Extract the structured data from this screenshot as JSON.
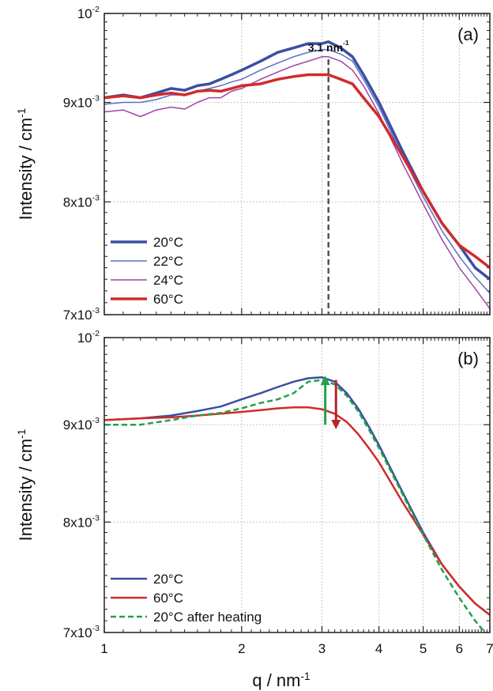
{
  "chart_data": [
    {
      "type": "line",
      "panel_label": "(a)",
      "ylabel": "Intensity / cm",
      "ylabel_superscript": "-1",
      "x_scale": "log",
      "y_scale": "log",
      "xlim": [
        1,
        7
      ],
      "ylim": [
        0.007,
        0.01
      ],
      "grid": true,
      "legend_position": "bottom-left",
      "y_ticks": [
        {
          "value": 0.009,
          "label": "9x10",
          "exp": "-3"
        },
        {
          "value": 0.008,
          "label": "8x10",
          "exp": "-3"
        },
        {
          "value": 0.007,
          "label": "7x10",
          "exp": "-3"
        },
        {
          "value": 0.01,
          "label": "10",
          "exp": "-2"
        }
      ],
      "annotation": {
        "text": "3.1 nm",
        "superscript": "-1",
        "x": 3.1
      },
      "series": [
        {
          "name": "20°C",
          "color": "#3a4fa3",
          "width": 3.5,
          "dash": "",
          "x": [
            1,
            1.1,
            1.2,
            1.3,
            1.4,
            1.5,
            1.6,
            1.7,
            1.8,
            1.9,
            2,
            2.2,
            2.4,
            2.6,
            2.8,
            3,
            3.1,
            3.3,
            3.5,
            3.7,
            4,
            4.5,
            5,
            5.5,
            6,
            6.5,
            7
          ],
          "y": [
            0.00905,
            0.00908,
            0.00905,
            0.0091,
            0.00915,
            0.00913,
            0.00918,
            0.0092,
            0.00925,
            0.0093,
            0.00935,
            0.00945,
            0.00955,
            0.0096,
            0.00965,
            0.00965,
            0.00967,
            0.0096,
            0.0095,
            0.0093,
            0.009,
            0.0085,
            0.0081,
            0.0078,
            0.0076,
            0.0074,
            0.0073
          ]
        },
        {
          "name": "22°C",
          "color": "#5c6fc4",
          "width": 1.5,
          "dash": "",
          "x": [
            1,
            1.1,
            1.2,
            1.3,
            1.4,
            1.5,
            1.6,
            1.7,
            1.8,
            1.9,
            2,
            2.2,
            2.4,
            2.6,
            2.8,
            3,
            3.1,
            3.3,
            3.5,
            3.7,
            4,
            4.5,
            5,
            5.5,
            6,
            6.5,
            7
          ],
          "y": [
            0.00898,
            0.009,
            0.009,
            0.00903,
            0.00908,
            0.00908,
            0.00912,
            0.00915,
            0.00918,
            0.00922,
            0.00925,
            0.00935,
            0.00943,
            0.0095,
            0.00955,
            0.00958,
            0.00958,
            0.00953,
            0.00945,
            0.00925,
            0.00895,
            0.00845,
            0.00805,
            0.00773,
            0.0075,
            0.00732,
            0.00718
          ]
        },
        {
          "name": "24°C",
          "color": "#a044a8",
          "width": 1.5,
          "dash": "",
          "x": [
            1,
            1.1,
            1.2,
            1.3,
            1.4,
            1.5,
            1.6,
            1.7,
            1.8,
            1.9,
            2,
            2.2,
            2.4,
            2.6,
            2.8,
            3,
            3.1,
            3.3,
            3.5,
            3.7,
            4,
            4.5,
            5,
            5.5,
            6,
            6.5,
            7
          ],
          "y": [
            0.0089,
            0.00892,
            0.00885,
            0.00892,
            0.00895,
            0.00893,
            0.009,
            0.00905,
            0.00905,
            0.00912,
            0.00915,
            0.00925,
            0.00933,
            0.0094,
            0.00945,
            0.0095,
            0.0095,
            0.00945,
            0.00935,
            0.00918,
            0.00888,
            0.00838,
            0.00798,
            0.00765,
            0.0074,
            0.00722,
            0.00705
          ]
        },
        {
          "name": "60°C",
          "color": "#d02b2b",
          "width": 3.5,
          "dash": "",
          "x": [
            1,
            1.1,
            1.2,
            1.3,
            1.4,
            1.5,
            1.6,
            1.7,
            1.8,
            1.9,
            2,
            2.2,
            2.4,
            2.6,
            2.8,
            3,
            3.1,
            3.3,
            3.5,
            3.7,
            4,
            4.5,
            5,
            5.5,
            6,
            6.5,
            7
          ],
          "y": [
            0.00905,
            0.00907,
            0.00905,
            0.00908,
            0.0091,
            0.00908,
            0.00912,
            0.00913,
            0.00912,
            0.00915,
            0.00918,
            0.0092,
            0.00925,
            0.00928,
            0.0093,
            0.0093,
            0.0093,
            0.00925,
            0.0092,
            0.00905,
            0.00885,
            0.00845,
            0.0081,
            0.0078,
            0.0076,
            0.0075,
            0.0074
          ]
        }
      ]
    },
    {
      "type": "line",
      "panel_label": "(b)",
      "xlabel": "q / nm",
      "xlabel_superscript": "-1",
      "ylabel": "Intensity / cm",
      "ylabel_superscript": "-1",
      "x_scale": "log",
      "y_scale": "log",
      "xlim": [
        1,
        7
      ],
      "ylim": [
        0.007,
        0.01
      ],
      "grid": true,
      "legend_position": "bottom-left",
      "x_ticks": [
        1,
        2,
        3,
        4,
        5,
        6,
        7
      ],
      "y_ticks": [
        {
          "value": 0.009,
          "label": "9x10",
          "exp": "-3"
        },
        {
          "value": 0.008,
          "label": "8x10",
          "exp": "-3"
        },
        {
          "value": 0.007,
          "label": "7x10",
          "exp": "-3"
        },
        {
          "value": 0.01,
          "label": "10",
          "exp": "-2"
        }
      ],
      "arrows": [
        {
          "direction": "up",
          "x": 3.05,
          "y_from": 0.009,
          "y_to": 0.00955,
          "color": "#22a04a"
        },
        {
          "direction": "down",
          "x": 3.22,
          "y_from": 0.0095,
          "y_to": 0.00895,
          "color": "#b52626"
        }
      ],
      "series": [
        {
          "name": "20°C",
          "color": "#3a4fa3",
          "width": 2.5,
          "dash": "",
          "x": [
            1,
            1.2,
            1.4,
            1.6,
            1.8,
            2,
            2.2,
            2.4,
            2.6,
            2.8,
            3,
            3.2,
            3.4,
            3.6,
            3.8,
            4,
            4.5,
            5,
            5.5,
            6,
            6.5,
            7
          ],
          "y": [
            0.00905,
            0.00907,
            0.0091,
            0.00915,
            0.0092,
            0.00928,
            0.00935,
            0.00942,
            0.00948,
            0.00952,
            0.00953,
            0.00948,
            0.00935,
            0.00918,
            0.00898,
            0.00878,
            0.0083,
            0.0079,
            0.0076,
            0.0074,
            0.00725,
            0.00715
          ]
        },
        {
          "name": "60°C",
          "color": "#d02b2b",
          "width": 2.5,
          "dash": "",
          "x": [
            1,
            1.2,
            1.4,
            1.6,
            1.8,
            2,
            2.2,
            2.4,
            2.6,
            2.8,
            3,
            3.2,
            3.4,
            3.6,
            3.8,
            4,
            4.5,
            5,
            5.5,
            6,
            6.5,
            7
          ],
          "y": [
            0.00905,
            0.00907,
            0.00908,
            0.0091,
            0.00912,
            0.00914,
            0.00916,
            0.00918,
            0.00919,
            0.00919,
            0.00917,
            0.00912,
            0.00903,
            0.0089,
            0.00875,
            0.0086,
            0.0082,
            0.00788,
            0.0076,
            0.0074,
            0.00725,
            0.00715
          ]
        },
        {
          "name": "20°C after heating",
          "color": "#22a04a",
          "width": 2.5,
          "dash": "7,4",
          "x": [
            1,
            1.1,
            1.2,
            1.4,
            1.6,
            1.8,
            2,
            2.2,
            2.4,
            2.6,
            2.8,
            3,
            3.2,
            3.4,
            3.6,
            3.8,
            4,
            4.5,
            5,
            5.5,
            6,
            6.5,
            7
          ],
          "y": [
            0.009,
            0.009,
            0.009,
            0.00905,
            0.0091,
            0.00913,
            0.00918,
            0.00924,
            0.00928,
            0.00935,
            0.00948,
            0.0095,
            0.00945,
            0.00932,
            0.00915,
            0.00895,
            0.00875,
            0.00828,
            0.00788,
            0.00755,
            0.0073,
            0.0071,
            0.00695
          ]
        }
      ]
    }
  ]
}
